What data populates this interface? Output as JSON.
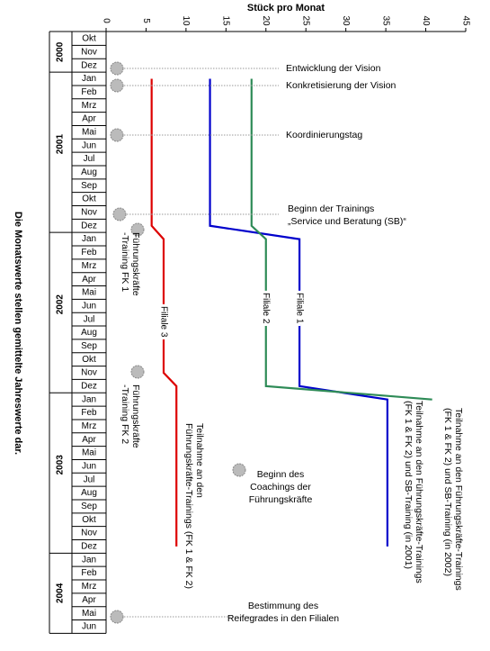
{
  "chart_data": {
    "type": "line",
    "x_label": "Stück pro Monat",
    "note": "Die Monatswerte stellen gemittelte Jahreswerte dar.",
    "xlim": [
      0,
      45
    ],
    "xticks": [
      0,
      5,
      10,
      15,
      20,
      25,
      30,
      35,
      40,
      45
    ],
    "years": [
      "2000",
      "2001",
      "2002",
      "2003",
      "2004"
    ],
    "categories": [
      "Okt",
      "Nov",
      "Dez",
      "Jan",
      "Feb",
      "Mrz",
      "Apr",
      "Mai",
      "Jun",
      "Jul",
      "Aug",
      "Sep",
      "Okt",
      "Nov",
      "Dez",
      "Jan",
      "Feb",
      "Mrz",
      "Apr",
      "Mai",
      "Jun",
      "Jul",
      "Aug",
      "Sep",
      "Okt",
      "Nov",
      "Dez",
      "Jan",
      "Feb",
      "Mrz",
      "Apr",
      "Mai",
      "Jun",
      "Jul",
      "Aug",
      "Sep",
      "Okt",
      "Nov",
      "Dez",
      "Jan",
      "Feb",
      "Mrz",
      "Apr",
      "Mai",
      "Jun"
    ],
    "series": [
      {
        "name": "Filiale 1",
        "color": "#0000cc",
        "values": [
          null,
          null,
          null,
          13,
          13,
          13,
          13,
          13,
          13,
          13,
          13,
          13,
          13,
          13,
          13,
          24.2,
          24.2,
          24.2,
          24.2,
          24.2,
          24.2,
          24.2,
          24.2,
          24.2,
          24.2,
          24.2,
          24.2,
          35.2,
          35.2,
          35.2,
          35.2,
          35.2,
          35.2,
          35.2,
          35.2,
          35.2,
          35.2,
          35.2,
          35.2,
          null,
          null,
          null,
          null,
          null,
          null
        ]
      },
      {
        "name": "Filiale 2",
        "color": "#2e8b57",
        "values": [
          null,
          null,
          null,
          18.2,
          18.2,
          18.2,
          18.2,
          18.2,
          18.2,
          18.2,
          18.2,
          18.2,
          18.2,
          18.2,
          18.2,
          20,
          20,
          20,
          20,
          20,
          20,
          20,
          20,
          20,
          20,
          20,
          20,
          40.8,
          null,
          null,
          null,
          null,
          null,
          null,
          null,
          null,
          null,
          null,
          null,
          null,
          null,
          null,
          null,
          null,
          null
        ]
      },
      {
        "name": "Filiale 3",
        "color": "#dd0000",
        "values": [
          null,
          null,
          null,
          5.7,
          5.7,
          5.7,
          5.7,
          5.7,
          5.7,
          5.7,
          5.7,
          5.7,
          5.7,
          5.7,
          5.7,
          7.2,
          7.2,
          7.2,
          7.2,
          7.2,
          7.2,
          7.2,
          7.2,
          7.2,
          7.2,
          7.2,
          8.8,
          8.8,
          8.8,
          8.8,
          8.8,
          8.8,
          8.8,
          8.8,
          8.8,
          8.8,
          8.8,
          8.8,
          8.8,
          null,
          null,
          null,
          null,
          null,
          null
        ]
      }
    ],
    "annotations": [
      [
        "Entwicklung der Vision"
      ],
      [
        "Konkretisierung der Vision"
      ],
      [
        "Koordinierungstag"
      ],
      [
        "Beginn der Trainings",
        "„Service und Beratung (SB)“"
      ],
      [
        "Führungskräfte",
        "-Training FK 1"
      ],
      [
        "Führungskräfte",
        "-Training  FK 2"
      ],
      [
        "Teilnahme an den",
        "Führungskräfte-Trainings (FK 1 & FK 2)"
      ],
      [
        "Beginn des",
        "Coachings der",
        "Führungskräfte"
      ],
      [
        "Teilnahme an den Führungskräfte-Trainings",
        "(FK 1 & FK 2) und SB-Training (in 2001)"
      ],
      [
        "Teilnahme an den Führungskräfte-Trainings",
        "(FK 1 & FK 2) und SB-Training (in 2002)"
      ],
      [
        "Bestimmung des",
        "Reifegrades in den Filialen"
      ]
    ]
  }
}
